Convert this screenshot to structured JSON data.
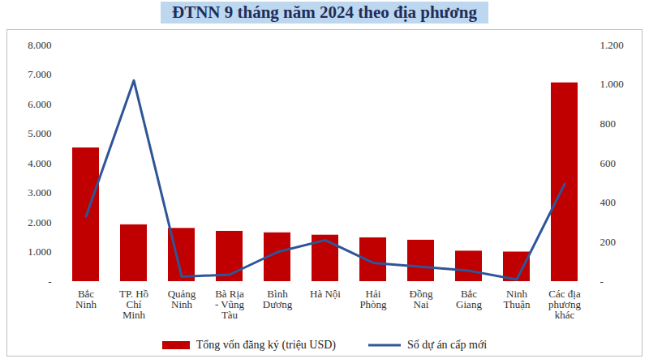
{
  "chart_data": {
    "type": "bar",
    "title": "ĐTNN 9 tháng năm 2024 theo địa phương",
    "categories": [
      "Bắc Ninh",
      "TP. Hồ Chí Minh",
      "Quảng Ninh",
      "Bà Rịa - Vũng Tàu",
      "Bình Dương",
      "Hà Nội",
      "Hải Phòng",
      "Đồng Nai",
      "Bắc Giang",
      "Ninh Thuận",
      "Các địa phương khác"
    ],
    "series": [
      {
        "name": "Tổng vốn đăng ký (triệu USD)",
        "type": "bar",
        "color": "#c00000",
        "values": [
          4520,
          1920,
          1800,
          1700,
          1650,
          1570,
          1480,
          1400,
          1030,
          1000,
          6720
        ]
      },
      {
        "name": "Số dự án cấp mới",
        "type": "line",
        "color": "#2e5597",
        "axis": "y2",
        "values": [
          330,
          1020,
          25,
          35,
          150,
          210,
          95,
          75,
          55,
          10,
          495
        ]
      }
    ],
    "ylim": [
      0,
      8000
    ],
    "yticks": [
      {
        "value": 0,
        "label": "-"
      },
      {
        "value": 1000,
        "label": "1.000"
      },
      {
        "value": 2000,
        "label": "2.000"
      },
      {
        "value": 3000,
        "label": "3.000"
      },
      {
        "value": 4000,
        "label": "4.000"
      },
      {
        "value": 5000,
        "label": "5.000"
      },
      {
        "value": 6000,
        "label": "6.000"
      },
      {
        "value": 7000,
        "label": "7.000"
      },
      {
        "value": 8000,
        "label": "8.000"
      }
    ],
    "y2lim": [
      0,
      1200
    ],
    "y2ticks": [
      {
        "value": 0,
        "label": "-"
      },
      200,
      400,
      600,
      800,
      {
        "value": 1000,
        "label": "1.000"
      },
      {
        "value": 1200,
        "label": "1.200"
      }
    ],
    "legend": "bottom",
    "grid": false
  }
}
